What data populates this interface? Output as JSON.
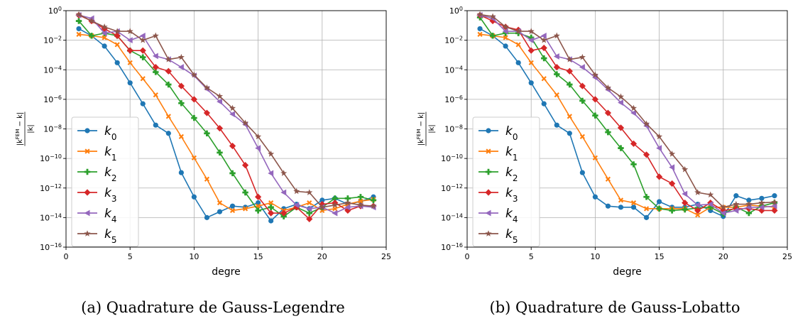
{
  "colors": {
    "k0": "#1f77b4",
    "k1": "#ff7f0e",
    "k2": "#2ca02c",
    "k3": "#d62728",
    "k4": "#9467bd",
    "k5": "#8c564b",
    "grid": "#b0b0b0"
  },
  "chart_data": [
    {
      "type": "line",
      "caption": "(a) Quadrature de Gauss-Legendre",
      "xlabel": "degre",
      "ylabel": "|k^FEM − k| / |k|",
      "yscale": "log",
      "xlim": [
        0,
        25
      ],
      "ylim": [
        1e-16,
        1
      ],
      "xticks": [
        0,
        5,
        10,
        15,
        20,
        25
      ],
      "yticks_exp": [
        0,
        -2,
        -4,
        -6,
        -8,
        -10,
        -12,
        -14,
        -16
      ],
      "grid": true,
      "legend_position": "center-left",
      "x": [
        1,
        2,
        3,
        4,
        5,
        6,
        7,
        8,
        9,
        10,
        11,
        12,
        13,
        14,
        15,
        16,
        17,
        18,
        19,
        20,
        21,
        22,
        23,
        24
      ],
      "series": [
        {
          "name": "k0",
          "marker": "circle",
          "values": [
            0.06,
            0.02,
            0.004,
            0.0003,
            1.3e-05,
            5e-07,
            1.8e-08,
            5e-09,
            1.1e-11,
            2.5e-13,
            1e-14,
            2.5e-14,
            6e-14,
            5e-14,
            1e-13,
            6e-15,
            4e-14,
            8e-14,
            4e-14,
            1.5e-13,
            2e-13,
            8e-14,
            1.2e-13,
            2.5e-13
          ]
        },
        {
          "name": "k1",
          "marker": "x",
          "values": [
            0.025,
            0.02,
            0.015,
            0.005,
            0.0003,
            2.5e-05,
            2e-06,
            7e-08,
            3e-09,
            1.1e-10,
            4e-12,
            1e-13,
            3e-14,
            4e-14,
            6e-14,
            1e-13,
            3e-14,
            5e-14,
            1e-13,
            3e-14,
            4e-14,
            8e-14,
            1.3e-13,
            1.7e-13
          ]
        },
        {
          "name": "k2",
          "marker": "plus",
          "values": [
            0.2,
            0.02,
            0.03,
            0.02,
            0.002,
            0.0007,
            7e-05,
            1e-05,
            5.5e-07,
            5.5e-08,
            5e-09,
            2.5e-10,
            1e-11,
            5e-13,
            3e-14,
            5e-14,
            1.2e-14,
            5e-14,
            2e-14,
            5e-14,
            2e-13,
            2e-13,
            2.5e-13,
            1.5e-13
          ]
        },
        {
          "name": "k3",
          "marker": "diamond",
          "values": [
            0.5,
            0.2,
            0.06,
            0.02,
            0.002,
            0.002,
            0.00015,
            8e-05,
            8e-06,
            1e-06,
            1.2e-07,
            1.1e-08,
            7e-10,
            3.5e-11,
            2.5e-13,
            2e-14,
            2e-14,
            5e-14,
            8e-15,
            8e-14,
            1e-13,
            3e-14,
            6e-14,
            6e-14
          ]
        },
        {
          "name": "k4",
          "marker": "triangle-left",
          "values": [
            0.5,
            0.3,
            0.03,
            0.04,
            0.01,
            0.02,
            0.00085,
            0.0005,
            0.00015,
            4e-05,
            5e-06,
            7e-07,
            1e-07,
            2e-08,
            5e-10,
            1e-11,
            5e-13,
            7e-14,
            4e-14,
            5e-14,
            2e-14,
            5e-14,
            6e-14,
            5e-14
          ]
        },
        {
          "name": "k5",
          "marker": "star",
          "values": [
            0.55,
            0.2,
            0.08,
            0.04,
            0.04,
            0.01,
            0.02,
            0.0005,
            0.0007,
            4.5e-05,
            6e-06,
            1.6e-06,
            2.5e-07,
            2.5e-08,
            3e-09,
            2e-10,
            1e-11,
            6e-13,
            5e-13,
            5e-14,
            7e-14,
            1e-13,
            7e-14,
            6e-14
          ]
        }
      ]
    },
    {
      "type": "line",
      "caption": "(b) Quadrature de Gauss-Lobatto",
      "xlabel": "degre",
      "ylabel": "|k^FEM − k| / |k|",
      "yscale": "log",
      "xlim": [
        0,
        25
      ],
      "ylim": [
        1e-16,
        1
      ],
      "xticks": [
        0,
        5,
        10,
        15,
        20,
        25
      ],
      "yticks_exp": [
        0,
        -2,
        -4,
        -6,
        -8,
        -10,
        -12,
        -14,
        -16
      ],
      "grid": true,
      "legend_position": "center-left",
      "x": [
        1,
        2,
        3,
        4,
        5,
        6,
        7,
        8,
        9,
        10,
        11,
        12,
        13,
        14,
        15,
        16,
        17,
        18,
        19,
        20,
        21,
        22,
        23,
        24
      ],
      "series": [
        {
          "name": "k0",
          "marker": "circle",
          "values": [
            0.06,
            0.02,
            0.004,
            0.0003,
            1.3e-05,
            5e-07,
            1.8e-08,
            5e-09,
            1.1e-11,
            2.5e-13,
            6e-14,
            5e-14,
            5e-14,
            1e-14,
            1.2e-13,
            5e-14,
            5e-14,
            8e-14,
            3e-14,
            1.2e-14,
            3e-13,
            1.5e-13,
            2e-13,
            3e-13
          ]
        },
        {
          "name": "k1",
          "marker": "x",
          "values": [
            0.025,
            0.02,
            0.015,
            0.005,
            0.0003,
            2.5e-05,
            2e-06,
            7e-08,
            3e-09,
            1.1e-10,
            4e-12,
            1.5e-13,
            1e-13,
            4e-14,
            4e-14,
            4e-14,
            4e-14,
            1.5e-14,
            5e-14,
            5e-14,
            5e-14,
            7e-14,
            6e-14,
            5e-14
          ]
        },
        {
          "name": "k2",
          "marker": "plus",
          "values": [
            0.35,
            0.02,
            0.03,
            0.03,
            0.015,
            0.0006,
            5e-05,
            1e-05,
            8e-07,
            8e-08,
            6e-09,
            5e-10,
            4e-11,
            2.5e-13,
            4e-14,
            3e-14,
            3.5e-14,
            4.5e-14,
            5e-14,
            1.8e-14,
            5e-14,
            2e-14,
            6e-14,
            1e-13
          ]
        },
        {
          "name": "k3",
          "marker": "diamond",
          "values": [
            0.5,
            0.2,
            0.08,
            0.05,
            0.002,
            0.003,
            0.00015,
            8e-05,
            8e-06,
            1e-06,
            1.2e-07,
            1.2e-08,
            1e-09,
            1.8e-10,
            5.8e-12,
            2e-12,
            1e-13,
            3e-14,
            1e-13,
            3e-14,
            4e-14,
            4e-14,
            3e-14,
            3e-14
          ]
        },
        {
          "name": "k4",
          "marker": "triangle-left",
          "values": [
            0.5,
            0.3,
            0.04,
            0.04,
            0.01,
            0.02,
            0.0008,
            0.0005,
            0.00015,
            3e-05,
            4.5e-06,
            6e-07,
            1.2e-07,
            1.6e-08,
            5e-10,
            2.5e-11,
            4e-13,
            7e-14,
            8e-14,
            2e-14,
            3e-14,
            5e-14,
            5e-14,
            6e-14
          ]
        },
        {
          "name": "k5",
          "marker": "star",
          "values": [
            0.55,
            0.4,
            0.08,
            0.04,
            0.04,
            0.01,
            0.02,
            0.0005,
            0.0007,
            4.5e-05,
            6e-06,
            1.5e-06,
            2.5e-07,
            2.2e-08,
            3e-09,
            2e-10,
            1.8e-11,
            5e-13,
            3.5e-13,
            5e-14,
            8e-14,
            8e-14,
            1e-13,
            1.1e-13
          ]
        }
      ]
    }
  ]
}
